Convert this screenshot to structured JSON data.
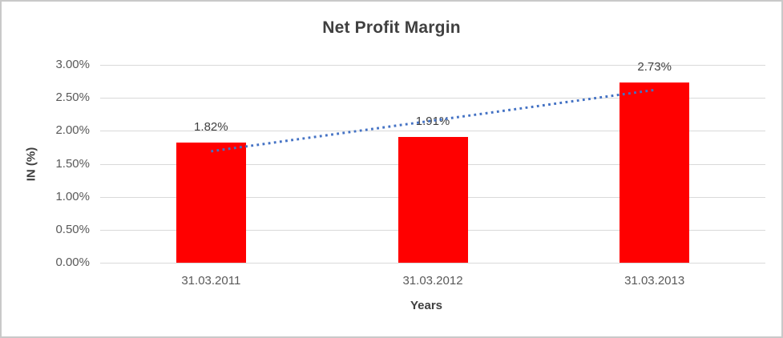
{
  "window": {
    "border_color": "#c9c9c9",
    "background_color": "#ffffff"
  },
  "chart_data": {
    "type": "bar",
    "title": "Net Profit Margin",
    "xlabel": "Years",
    "ylabel": "IN (%)",
    "categories": [
      "31.03.2011",
      "31.03.2012",
      "31.03.2013"
    ],
    "values": [
      1.82,
      1.91,
      2.73
    ],
    "data_labels": [
      "1.82%",
      "1.91%",
      "2.73%"
    ],
    "ylim": [
      0,
      3
    ],
    "ytick_step": 0.5,
    "ytick_labels": [
      "0.00%",
      "0.50%",
      "1.00%",
      "1.50%",
      "2.00%",
      "2.50%",
      "3.00%"
    ],
    "grid": true,
    "legend_position": "none",
    "bar_color": "#ff0000",
    "gridline_color": "#d9d9d9",
    "title_color": "#404040",
    "tick_color": "#595959",
    "trendline": {
      "style": "dotted",
      "color": "#4472c4",
      "start_value_pct": 1.69,
      "end_value_pct": 2.62
    }
  }
}
